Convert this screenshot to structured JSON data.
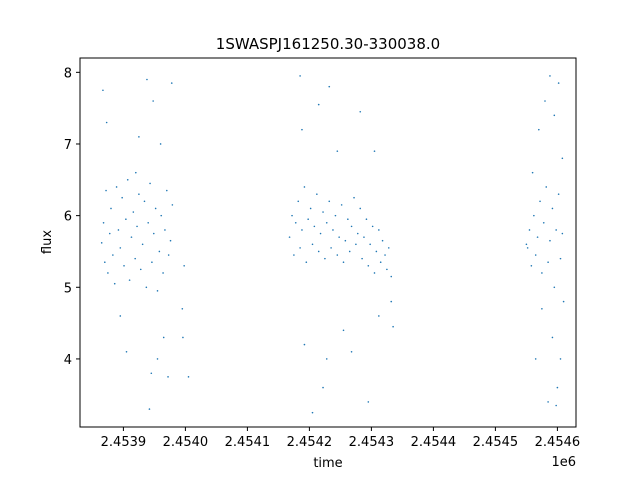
{
  "chart_data": {
    "type": "scatter",
    "title": "1SWASPJ161250.30-330038.0",
    "xlabel": "time",
    "ylabel": "flux",
    "x_offset_label": "1e6",
    "xlim": [
      2.45383,
      2.45463
    ],
    "ylim": [
      3.05,
      8.2
    ],
    "x_ticks": [
      2.4539,
      2.454,
      2.4541,
      2.4542,
      2.4543,
      2.4544,
      2.4545,
      2.4546
    ],
    "x_tick_labels": [
      "2.4539",
      "2.4540",
      "2.4541",
      "2.4542",
      "2.4543",
      "2.4544",
      "2.4545",
      "2.4546"
    ],
    "y_ticks": [
      4,
      5,
      6,
      7,
      8
    ],
    "y_tick_labels": [
      "4",
      "5",
      "6",
      "7",
      "8"
    ],
    "grid": false,
    "marker_color": "#1f77b4",
    "series": [
      {
        "points": [
          [
            2.453865,
            5.62
          ],
          [
            2.453868,
            5.9
          ],
          [
            2.45387,
            5.35
          ],
          [
            2.453872,
            6.35
          ],
          [
            2.453875,
            5.2
          ],
          [
            2.453878,
            5.75
          ],
          [
            2.45388,
            6.1
          ],
          [
            2.453883,
            5.45
          ],
          [
            2.453886,
            5.05
          ],
          [
            2.453889,
            6.4
          ],
          [
            2.453892,
            5.8
          ],
          [
            2.453895,
            5.55
          ],
          [
            2.453898,
            6.25
          ],
          [
            2.453901,
            5.3
          ],
          [
            2.453904,
            5.95
          ],
          [
            2.453907,
            6.5
          ],
          [
            2.45391,
            5.1
          ],
          [
            2.453913,
            5.7
          ],
          [
            2.453916,
            6.05
          ],
          [
            2.453919,
            5.4
          ],
          [
            2.453922,
            5.85
          ],
          [
            2.453925,
            6.3
          ],
          [
            2.453928,
            5.25
          ],
          [
            2.453931,
            5.6
          ],
          [
            2.453934,
            6.2
          ],
          [
            2.453937,
            5.0
          ],
          [
            2.45394,
            5.9
          ],
          [
            2.453943,
            6.45
          ],
          [
            2.453946,
            5.35
          ],
          [
            2.453949,
            5.75
          ],
          [
            2.453952,
            6.1
          ],
          [
            2.453955,
            4.95
          ],
          [
            2.453958,
            5.5
          ],
          [
            2.453961,
            6.0
          ],
          [
            2.453964,
            5.2
          ],
          [
            2.453967,
            5.8
          ],
          [
            2.45397,
            6.35
          ],
          [
            2.453973,
            5.45
          ],
          [
            2.453976,
            5.65
          ],
          [
            2.453979,
            6.15
          ],
          [
            2.453867,
            7.75
          ],
          [
            2.453873,
            7.3
          ],
          [
            2.453895,
            4.6
          ],
          [
            2.453905,
            4.1
          ],
          [
            2.453925,
            7.1
          ],
          [
            2.453938,
            7.9
          ],
          [
            2.453942,
            3.3
          ],
          [
            2.453945,
            3.8
          ],
          [
            2.453948,
            7.6
          ],
          [
            2.453955,
            4.0
          ],
          [
            2.45396,
            7.0
          ],
          [
            2.453972,
            3.75
          ],
          [
            2.453978,
            7.85
          ],
          [
            2.453965,
            4.3
          ],
          [
            2.45392,
            6.6
          ],
          [
            2.453995,
            4.7
          ],
          [
            2.453998,
            5.3
          ],
          [
            2.453996,
            4.3
          ],
          [
            2.454005,
            3.75
          ],
          [
            2.454168,
            5.7
          ],
          [
            2.454172,
            6.0
          ],
          [
            2.454175,
            5.45
          ],
          [
            2.454178,
            5.9
          ],
          [
            2.454182,
            6.2
          ],
          [
            2.454185,
            5.55
          ],
          [
            2.454188,
            5.8
          ],
          [
            2.454192,
            6.4
          ],
          [
            2.454195,
            5.35
          ],
          [
            2.454198,
            5.95
          ],
          [
            2.454202,
            6.1
          ],
          [
            2.454205,
            5.6
          ],
          [
            2.454208,
            5.85
          ],
          [
            2.454212,
            6.3
          ],
          [
            2.454215,
            5.5
          ],
          [
            2.454218,
            5.75
          ],
          [
            2.454222,
            6.05
          ],
          [
            2.454225,
            5.4
          ],
          [
            2.454228,
            5.9
          ],
          [
            2.454232,
            6.2
          ],
          [
            2.454235,
            5.55
          ],
          [
            2.454238,
            5.8
          ],
          [
            2.454242,
            6.0
          ],
          [
            2.454245,
            5.45
          ],
          [
            2.454248,
            5.7
          ],
          [
            2.454252,
            6.15
          ],
          [
            2.454255,
            5.35
          ],
          [
            2.454258,
            5.65
          ],
          [
            2.454262,
            5.95
          ],
          [
            2.454265,
            5.5
          ],
          [
            2.454268,
            5.85
          ],
          [
            2.454272,
            6.25
          ],
          [
            2.454275,
            5.6
          ],
          [
            2.454278,
            5.75
          ],
          [
            2.454282,
            6.1
          ],
          [
            2.454285,
            5.4
          ],
          [
            2.454288,
            5.7
          ],
          [
            2.454292,
            5.95
          ],
          [
            2.454295,
            5.3
          ],
          [
            2.454298,
            5.6
          ],
          [
            2.454302,
            5.85
          ],
          [
            2.454305,
            5.2
          ],
          [
            2.454308,
            5.5
          ],
          [
            2.454312,
            5.8
          ],
          [
            2.454315,
            5.35
          ],
          [
            2.454318,
            5.65
          ],
          [
            2.454322,
            5.45
          ],
          [
            2.454325,
            5.25
          ],
          [
            2.454328,
            5.55
          ],
          [
            2.454332,
            5.15
          ],
          [
            2.454185,
            7.95
          ],
          [
            2.454188,
            7.2
          ],
          [
            2.454192,
            4.2
          ],
          [
            2.454205,
            3.25
          ],
          [
            2.454215,
            7.55
          ],
          [
            2.454222,
            3.6
          ],
          [
            2.454228,
            4.0
          ],
          [
            2.454232,
            7.8
          ],
          [
            2.454245,
            6.9
          ],
          [
            2.454255,
            4.4
          ],
          [
            2.454268,
            4.1
          ],
          [
            2.454282,
            7.45
          ],
          [
            2.454295,
            3.4
          ],
          [
            2.454305,
            6.9
          ],
          [
            2.454312,
            4.6
          ],
          [
            2.454335,
            4.45
          ],
          [
            2.454332,
            4.8
          ],
          [
            2.454552,
            5.55
          ],
          [
            2.454555,
            5.8
          ],
          [
            2.454558,
            5.3
          ],
          [
            2.454562,
            6.0
          ],
          [
            2.454565,
            5.45
          ],
          [
            2.454568,
            5.7
          ],
          [
            2.454572,
            6.2
          ],
          [
            2.454575,
            5.2
          ],
          [
            2.454578,
            5.9
          ],
          [
            2.454582,
            6.4
          ],
          [
            2.454585,
            5.35
          ],
          [
            2.454588,
            5.65
          ],
          [
            2.454592,
            6.1
          ],
          [
            2.454595,
            5.0
          ],
          [
            2.454598,
            5.8
          ],
          [
            2.454602,
            6.3
          ],
          [
            2.454605,
            5.4
          ],
          [
            2.454608,
            5.75
          ],
          [
            2.45455,
            5.6
          ],
          [
            2.45456,
            6.6
          ],
          [
            2.45457,
            7.2
          ],
          [
            2.454575,
            4.7
          ],
          [
            2.45458,
            7.6
          ],
          [
            2.454585,
            3.4
          ],
          [
            2.454588,
            7.95
          ],
          [
            2.454592,
            4.3
          ],
          [
            2.454595,
            7.4
          ],
          [
            2.4546,
            3.6
          ],
          [
            2.454602,
            7.85
          ],
          [
            2.454605,
            4.0
          ],
          [
            2.454608,
            6.8
          ],
          [
            2.45461,
            4.8
          ],
          [
            2.454598,
            3.35
          ],
          [
            2.454565,
            4.0
          ]
        ]
      }
    ]
  }
}
